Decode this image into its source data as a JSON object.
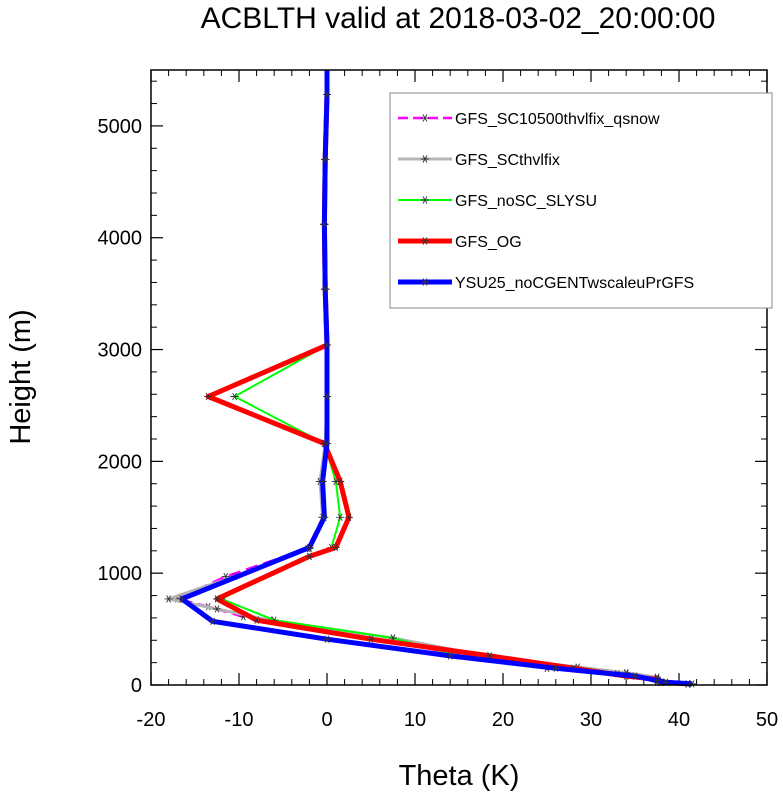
{
  "chart_data": {
    "type": "line",
    "title": "ACBLTH valid at 2018-03-02_20:00:00",
    "xlabel": "Theta (K)",
    "ylabel": "Height (m)",
    "xlim": [
      -20,
      50
    ],
    "ylim": [
      0,
      5500
    ],
    "xticks": [
      "-20",
      "-10",
      "0",
      "10",
      "20",
      "30",
      "40",
      "50"
    ],
    "yticks": [
      "0",
      "1000",
      "2000",
      "3000",
      "4000",
      "5000"
    ],
    "legend_position": "top-right",
    "series": [
      {
        "name": "GFS_SC10500thvlfix_qsnow",
        "color": "#ff00ff",
        "dash": true,
        "stroke": 2.5,
        "points": [
          [
            41.0,
            10
          ],
          [
            38.0,
            25
          ],
          [
            37.5,
            60
          ],
          [
            34.0,
            100
          ],
          [
            25.0,
            150
          ],
          [
            16.0,
            260
          ],
          [
            5.0,
            420
          ],
          [
            -6.5,
            580
          ],
          [
            -9.5,
            610
          ],
          [
            -13.5,
            700
          ],
          [
            -17.0,
            770
          ],
          [
            -11.5,
            970
          ],
          [
            -2.2,
            1220
          ],
          [
            -0.5,
            1500
          ],
          [
            -0.8,
            1820
          ],
          [
            -0.2,
            2160
          ],
          [
            0.0,
            2580
          ],
          [
            0.0,
            3040
          ],
          [
            -0.2,
            3540
          ],
          [
            -0.3,
            4120
          ],
          [
            -0.2,
            4700
          ],
          [
            0.0,
            5280
          ],
          [
            0.0,
            5500
          ]
        ]
      },
      {
        "name": "GFS_SCthvlfix",
        "color": "#b4b4b4",
        "dash": false,
        "stroke": 3,
        "points": [
          [
            41.0,
            10
          ],
          [
            38.0,
            25
          ],
          [
            37.5,
            70
          ],
          [
            34.0,
            110
          ],
          [
            28.5,
            160
          ],
          [
            18.0,
            260
          ],
          [
            7.5,
            420
          ],
          [
            -6.5,
            580
          ],
          [
            -12.5,
            680
          ],
          [
            -18.0,
            770
          ],
          [
            -10.5,
            970
          ],
          [
            -2.0,
            1220
          ],
          [
            -0.5,
            1500
          ],
          [
            -0.8,
            1820
          ],
          [
            -0.2,
            2160
          ],
          [
            0.0,
            2580
          ],
          [
            0.0,
            3040
          ],
          [
            -0.2,
            3540
          ],
          [
            -0.3,
            4120
          ],
          [
            -0.2,
            4700
          ],
          [
            0.0,
            5280
          ],
          [
            0.0,
            5500
          ]
        ]
      },
      {
        "name": "GFS_noSC_SLYSU",
        "color": "#00ff00",
        "dash": false,
        "stroke": 2,
        "points": [
          [
            41.0,
            10
          ],
          [
            37.5,
            25
          ],
          [
            37.5,
            60
          ],
          [
            33.0,
            100
          ],
          [
            25.0,
            150
          ],
          [
            15.0,
            260
          ],
          [
            7.5,
            420
          ],
          [
            -6.0,
            580
          ],
          [
            -12.0,
            770
          ],
          [
            -2.0,
            1150
          ],
          [
            0.5,
            1230
          ],
          [
            1.5,
            1500
          ],
          [
            1.0,
            1820
          ],
          [
            -0.3,
            2160
          ],
          [
            -10.5,
            2580
          ],
          [
            0.0,
            3040
          ],
          [
            -0.2,
            3540
          ],
          [
            -0.3,
            4120
          ],
          [
            -0.2,
            4700
          ],
          [
            0.0,
            5280
          ],
          [
            0.0,
            5500
          ]
        ]
      },
      {
        "name": "GFS_OG",
        "color": "#ff0000",
        "dash": false,
        "stroke": 5,
        "points": [
          [
            41.0,
            10
          ],
          [
            38.0,
            25
          ],
          [
            37.5,
            50
          ],
          [
            34.0,
            80
          ],
          [
            28.0,
            150
          ],
          [
            18.5,
            260
          ],
          [
            5.0,
            410
          ],
          [
            -8.0,
            580
          ],
          [
            -12.5,
            770
          ],
          [
            -2.0,
            1150
          ],
          [
            1.0,
            1230
          ],
          [
            2.5,
            1500
          ],
          [
            1.5,
            1820
          ],
          [
            -0.3,
            2160
          ],
          [
            -13.5,
            2580
          ],
          [
            0.0,
            3040
          ],
          [
            -0.2,
            3540
          ],
          [
            -0.3,
            4120
          ],
          [
            -0.2,
            4700
          ],
          [
            0.0,
            5280
          ],
          [
            0.0,
            5500
          ]
        ]
      },
      {
        "name": "YSU25_noCGENTwscaleuPrGFS",
        "color": "#0000ff",
        "dash": false,
        "stroke": 5,
        "points": [
          [
            41.5,
            10
          ],
          [
            38.5,
            25
          ],
          [
            37.5,
            40
          ],
          [
            35.0,
            80
          ],
          [
            26.0,
            150
          ],
          [
            14.0,
            260
          ],
          [
            0.0,
            410
          ],
          [
            -13.0,
            570
          ],
          [
            -16.5,
            770
          ],
          [
            -2.0,
            1230
          ],
          [
            -0.3,
            1500
          ],
          [
            -0.5,
            1820
          ],
          [
            0.0,
            2160
          ],
          [
            0.0,
            2580
          ],
          [
            0.0,
            3040
          ],
          [
            -0.2,
            3540
          ],
          [
            -0.3,
            4120
          ],
          [
            -0.2,
            4700
          ],
          [
            0.0,
            5280
          ],
          [
            0.0,
            5500
          ]
        ]
      }
    ]
  }
}
